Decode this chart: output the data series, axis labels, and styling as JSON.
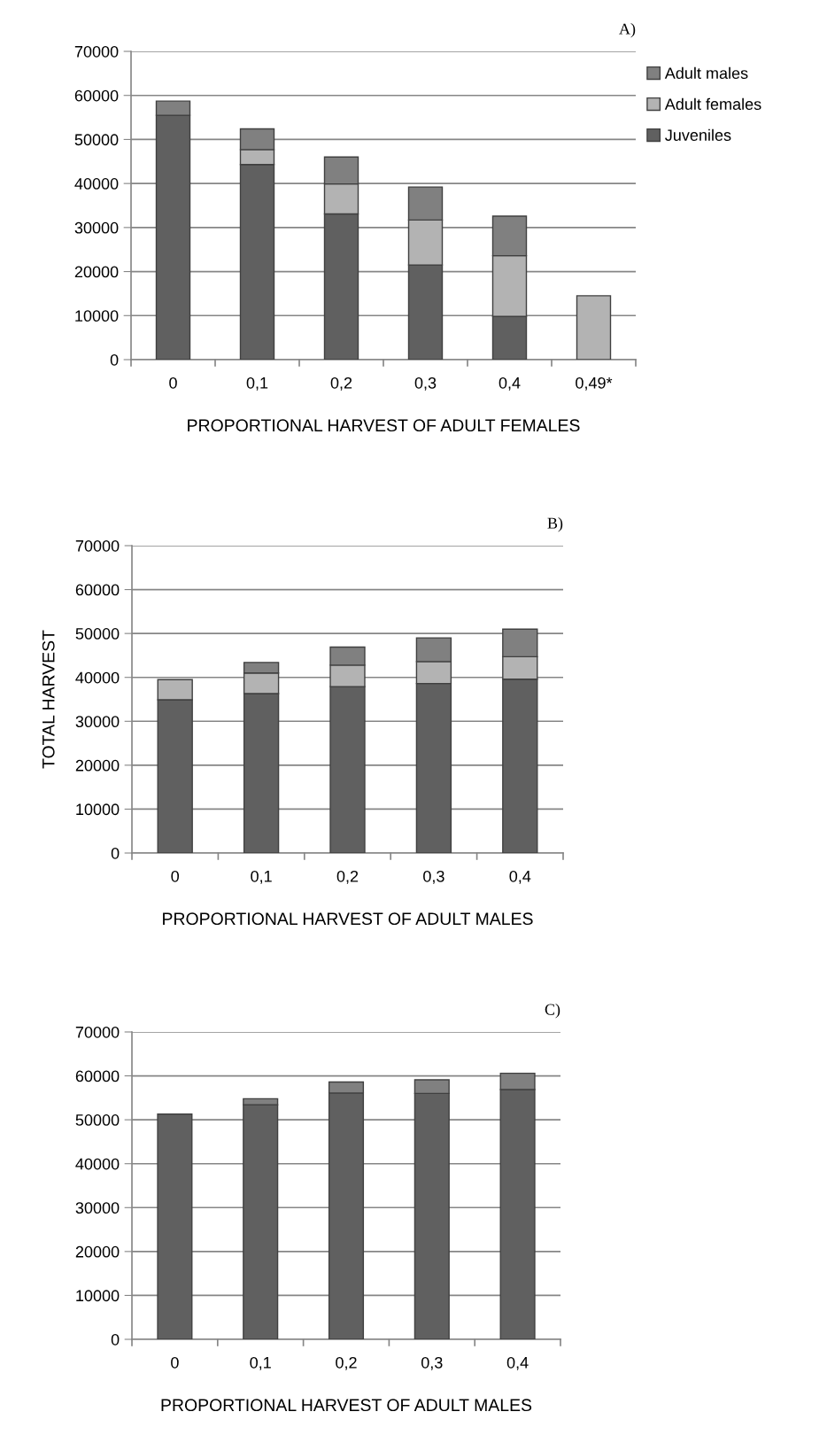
{
  "chart_data": [
    {
      "type": "bar",
      "stacked": true,
      "title": "A)",
      "xlabel": "PROPORTIONAL HARVEST OF ADULT FEMALES",
      "categories": [
        "0",
        "0,1",
        "0,2",
        "0,3",
        "0,4",
        "0,49*"
      ],
      "ylim": [
        0,
        70000
      ],
      "yticks": [
        0,
        10000,
        20000,
        30000,
        40000,
        50000,
        60000,
        70000
      ],
      "grid": "y",
      "legend": "top right",
      "series": [
        {
          "name": "Juveniles",
          "color": "#606060",
          "values": [
            55500,
            44300,
            33100,
            21500,
            9800,
            null
          ]
        },
        {
          "name": "Adult females",
          "color": "#b3b3b3",
          "values": [
            null,
            3400,
            6800,
            10200,
            13800,
            14500
          ]
        },
        {
          "name": "Adult males",
          "color": "#808080",
          "values": [
            3200,
            4700,
            6100,
            7500,
            9000,
            null
          ]
        }
      ]
    },
    {
      "type": "bar",
      "stacked": true,
      "title": "B)",
      "xlabel": "PROPORTIONAL HARVEST OF ADULT MALES",
      "ylabel": "TOTAL HARVEST",
      "categories": [
        "0",
        "0,1",
        "0,2",
        "0,3",
        "0,4"
      ],
      "ylim": [
        0,
        70000
      ],
      "yticks": [
        0,
        10000,
        20000,
        30000,
        40000,
        50000,
        60000,
        70000
      ],
      "grid": "y",
      "series": [
        {
          "color": "#606060",
          "values": [
            34900,
            36300,
            37900,
            38600,
            39600
          ]
        },
        {
          "color": "#b3b3b3",
          "values": [
            4600,
            4700,
            4900,
            5000,
            5100
          ]
        },
        {
          "color": "#808080",
          "values": [
            null,
            2400,
            4100,
            5400,
            6300
          ]
        }
      ]
    },
    {
      "type": "bar",
      "stacked": true,
      "title": "C)",
      "xlabel": "PROPORTIONAL HARVEST OF ADULT MALES",
      "categories": [
        "0",
        "0,1",
        "0,2",
        "0,3",
        "0,4"
      ],
      "ylim": [
        0,
        70000
      ],
      "yticks": [
        0,
        10000,
        20000,
        30000,
        40000,
        50000,
        60000,
        70000
      ],
      "grid": "y",
      "series": [
        {
          "color": "#606060",
          "values": [
            51300,
            53400,
            56100,
            56000,
            56900
          ]
        },
        {
          "color": "#808080",
          "values": [
            null,
            1400,
            2500,
            3100,
            3700
          ]
        }
      ]
    }
  ]
}
